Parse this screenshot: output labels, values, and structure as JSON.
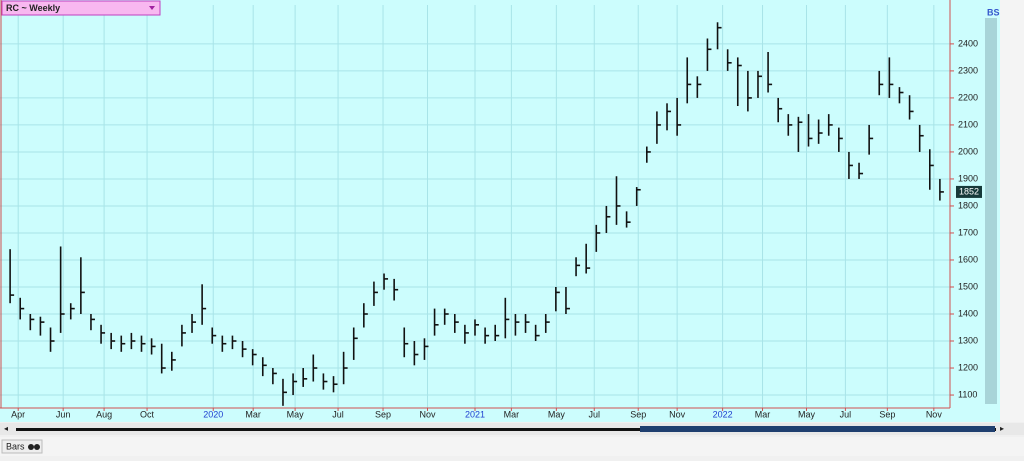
{
  "chart_data": {
    "type": "ohlc",
    "title": "RC ~ Weekly",
    "color": "#111111",
    "grid": true,
    "x": [
      2,
      4,
      6,
      8,
      10,
      12,
      14,
      16,
      18,
      20,
      22,
      24,
      26,
      28,
      30,
      32,
      34,
      36,
      38,
      40,
      42,
      44,
      46,
      48,
      50,
      52,
      54,
      56,
      58,
      60,
      62,
      64,
      66,
      68,
      70,
      72,
      74,
      76,
      78,
      80,
      82,
      84,
      86,
      88,
      90,
      92,
      94,
      96,
      98,
      100,
      102,
      104,
      106,
      108,
      110,
      112,
      114,
      116,
      118,
      120,
      122,
      124,
      126,
      128,
      130,
      132,
      134,
      136,
      138,
      140,
      142,
      144,
      146,
      148,
      150,
      152,
      154,
      156,
      158,
      160,
      162,
      164,
      166,
      168,
      170,
      172,
      174,
      176,
      178,
      180,
      182,
      184,
      186
    ],
    "high": [
      1640,
      1460,
      1400,
      1390,
      1350,
      1650,
      1440,
      1610,
      1400,
      1360,
      1330,
      1320,
      1330,
      1320,
      1310,
      1290,
      1260,
      1360,
      1400,
      1510,
      1350,
      1320,
      1320,
      1300,
      1270,
      1240,
      1200,
      1160,
      1180,
      1200,
      1250,
      1180,
      1170,
      1260,
      1350,
      1440,
      1520,
      1550,
      1530,
      1350,
      1300,
      1310,
      1420,
      1420,
      1400,
      1360,
      1380,
      1350,
      1360,
      1460,
      1400,
      1400,
      1360,
      1400,
      1500,
      1500,
      1610,
      1660,
      1730,
      1800,
      1910,
      1780,
      1870,
      2020,
      2150,
      2180,
      2200,
      2350,
      2280,
      2420,
      2480,
      2380,
      2350,
      2300,
      2300,
      2370,
      2200,
      2140,
      2130,
      2140,
      2120,
      2140,
      2090,
      2000,
      1960,
      2100,
      2300,
      2350,
      2240,
      2210,
      2100,
      2010,
      1900
    ],
    "low": [
      1440,
      1380,
      1340,
      1320,
      1260,
      1330,
      1380,
      1400,
      1340,
      1290,
      1270,
      1260,
      1270,
      1260,
      1250,
      1180,
      1190,
      1280,
      1330,
      1360,
      1290,
      1260,
      1270,
      1240,
      1210,
      1170,
      1140,
      1060,
      1100,
      1130,
      1150,
      1120,
      1110,
      1140,
      1230,
      1350,
      1430,
      1490,
      1450,
      1240,
      1210,
      1230,
      1320,
      1360,
      1330,
      1290,
      1320,
      1290,
      1300,
      1310,
      1320,
      1330,
      1300,
      1330,
      1410,
      1400,
      1540,
      1550,
      1630,
      1700,
      1730,
      1720,
      1800,
      1960,
      2030,
      2080,
      2060,
      2180,
      2200,
      2300,
      2380,
      2300,
      2170,
      2150,
      2200,
      2220,
      2110,
      2060,
      2000,
      2020,
      2030,
      2060,
      2000,
      1900,
      1900,
      1990,
      2210,
      2200,
      2180,
      2120,
      2000,
      1860,
      1820
    ],
    "close": [
      1470,
      1420,
      1380,
      1370,
      1300,
      1400,
      1420,
      1480,
      1380,
      1330,
      1300,
      1290,
      1300,
      1290,
      1280,
      1200,
      1230,
      1330,
      1370,
      1420,
      1320,
      1290,
      1300,
      1270,
      1250,
      1210,
      1180,
      1110,
      1150,
      1160,
      1200,
      1150,
      1140,
      1200,
      1310,
      1400,
      1480,
      1530,
      1490,
      1290,
      1250,
      1280,
      1360,
      1400,
      1370,
      1330,
      1360,
      1320,
      1320,
      1380,
      1370,
      1370,
      1320,
      1370,
      1480,
      1420,
      1580,
      1570,
      1700,
      1760,
      1800,
      1740,
      1860,
      2000,
      2100,
      2150,
      2100,
      2250,
      2250,
      2380,
      2460,
      2330,
      2320,
      2200,
      2280,
      2250,
      2160,
      2100,
      2110,
      2050,
      2070,
      2100,
      2050,
      1950,
      1920,
      2050,
      2250,
      2250,
      2220,
      2150,
      2060,
      1950,
      1852
    ],
    "xlim": [
      0,
      188
    ],
    "xticks": [
      {
        "value": 3.6,
        "label": "Apr"
      },
      {
        "value": 12.5,
        "label": "Jun"
      },
      {
        "value": 20.6,
        "label": "Aug"
      },
      {
        "value": 29.1,
        "label": "Oct"
      },
      {
        "value": 42.2,
        "label": "2020"
      },
      {
        "value": 50.1,
        "label": "Mar"
      },
      {
        "value": 58.4,
        "label": "May"
      },
      {
        "value": 66.9,
        "label": "Jul"
      },
      {
        "value": 75.8,
        "label": "Sep"
      },
      {
        "value": 84.6,
        "label": "Nov"
      },
      {
        "value": 94,
        "label": "2021"
      },
      {
        "value": 101.2,
        "label": "Mar"
      },
      {
        "value": 110.1,
        "label": "May"
      },
      {
        "value": 117.6,
        "label": "Jul"
      },
      {
        "value": 126.3,
        "label": "Sep"
      },
      {
        "value": 134,
        "label": "Nov"
      },
      {
        "value": 143,
        "label": "2022"
      },
      {
        "value": 150.9,
        "label": "Mar"
      },
      {
        "value": 159.6,
        "label": "May"
      },
      {
        "value": 167.3,
        "label": "Jul"
      },
      {
        "value": 175.6,
        "label": "Sep"
      },
      {
        "value": 184.8,
        "label": "Nov"
      }
    ],
    "ylim": [
      1052,
      2544
    ],
    "yticks": [
      1100,
      1200,
      1300,
      1400,
      1500,
      1600,
      1700,
      1800,
      1900,
      2000,
      2100,
      2200,
      2300,
      2400
    ]
  },
  "footer": {
    "label": "Bars"
  }
}
